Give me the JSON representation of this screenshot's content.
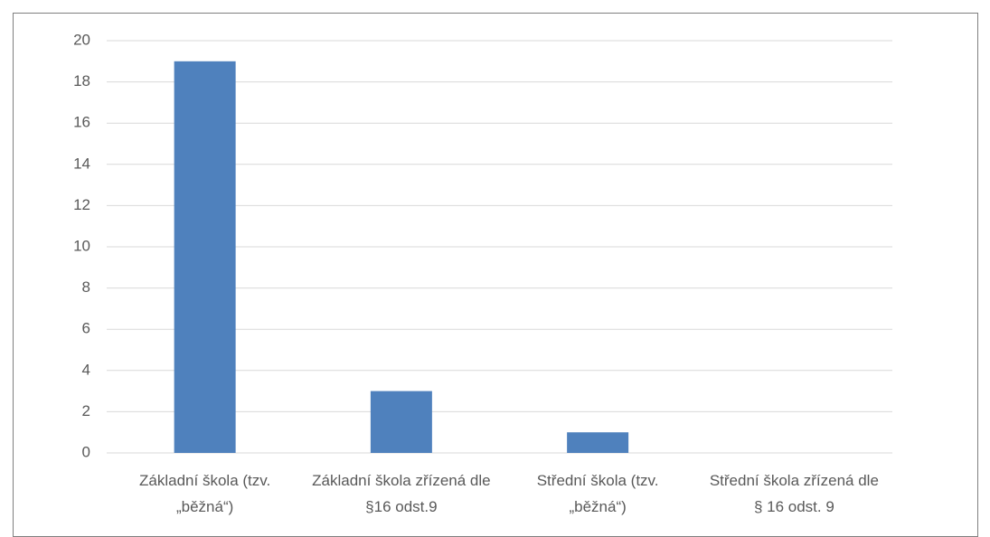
{
  "chart_data": {
    "type": "bar",
    "categories": [
      "Základní škola (tzv. „běžná“)",
      "Základní škola zřízená dle §16 odst.9",
      "Střední škola (tzv. „běžná“)",
      "Střední škola zřízená dle § 16 odst. 9"
    ],
    "values": [
      19,
      3,
      1,
      0
    ],
    "color": "#4f81bd",
    "ylim": [
      0,
      20
    ],
    "yticks": [
      0,
      2,
      4,
      6,
      8,
      10,
      12,
      14,
      16,
      18,
      20
    ],
    "grid": true
  }
}
